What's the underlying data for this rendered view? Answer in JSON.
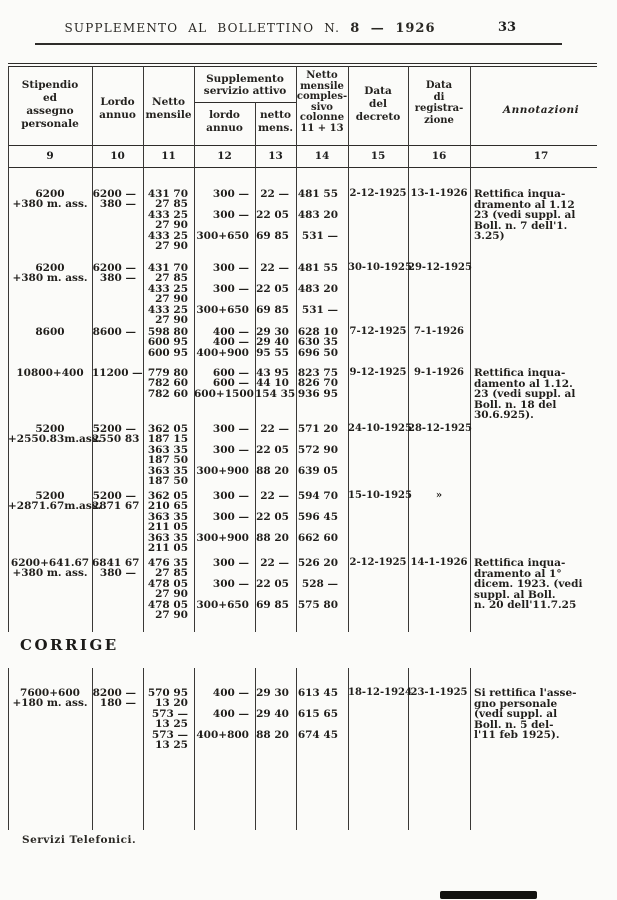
{
  "colors": {
    "paper": "#fbfbf9",
    "ink": "#1e1e1e",
    "rule": "#2e2c2a"
  },
  "page": {
    "header": {
      "title_prefix": "SUPPLEMENTO AL BOLLETTINO N.",
      "title_number": "8 — 1926",
      "page_number": "33"
    },
    "corrige_heading": "CORRIGE",
    "footer_note": "Servizi Telefonici."
  },
  "table": {
    "header": {
      "col9": {
        "num": "9",
        "lines": [
          "Stipendio",
          "ed",
          "assegno",
          "personale"
        ]
      },
      "col10": {
        "num": "10",
        "lines": [
          "Lordo",
          "annuo"
        ]
      },
      "col11": {
        "num": "11",
        "lines": [
          "Netto",
          "mensile"
        ]
      },
      "suppl_group": {
        "lines": [
          "Supplemento",
          "servizio attivo"
        ]
      },
      "col12": {
        "num": "12",
        "lines": [
          "lordo",
          "annuo"
        ]
      },
      "col13": {
        "num": "13",
        "lines": [
          "netto",
          "mens."
        ]
      },
      "col14": {
        "num": "14",
        "lines": [
          "Netto",
          "mensile",
          "comples-",
          "sivo",
          "colonne",
          "11 + 13"
        ]
      },
      "col15": {
        "num": "15",
        "lines": [
          "Data",
          "del",
          "decreto"
        ]
      },
      "col16": {
        "num": "16",
        "lines": [
          "Data",
          "di",
          "registra-",
          "zione"
        ]
      },
      "col17": {
        "num": "17",
        "lines": [
          "Annotazioni"
        ]
      }
    },
    "rows": [
      {
        "stipendio": [
          "6200",
          "+380 m. ass."
        ],
        "lordo": [
          "6200 —",
          "380 —"
        ],
        "netto": [
          "431 70",
          "27 85",
          "433 25",
          "27 90",
          "433 25",
          "27 90"
        ],
        "suppl_lordo": [
          "300 —",
          "",
          "300 —",
          "",
          "300+650"
        ],
        "suppl_netto": [
          "22 —",
          "",
          "22 05",
          "",
          "69 85"
        ],
        "compl": [
          "481 55",
          "",
          "483 20",
          "",
          "531 —"
        ],
        "decreto": "2-12-1925",
        "registrazione": "13-1-1926",
        "annotazioni": [
          "Rettifica inqua-",
          "dramento al 1.12",
          "23 (vedi suppl. al",
          "Boll. n. 7 dell'1.",
          "3.25)"
        ]
      },
      {
        "stipendio": [
          "6200",
          "+380 m. ass."
        ],
        "lordo": [
          "6200 —",
          "380 —"
        ],
        "netto": [
          "431 70",
          "27 85",
          "433 25",
          "27 90",
          "433 25",
          "27 90"
        ],
        "suppl_lordo": [
          "300 —",
          "",
          "300 —",
          "",
          "300+650"
        ],
        "suppl_netto": [
          "22 —",
          "",
          "22 05",
          "",
          "69 85"
        ],
        "compl": [
          "481 55",
          "",
          "483 20",
          "",
          "531 —"
        ],
        "decreto": "30-10-1925",
        "registrazione": "29-12-1925",
        "annotazioni": []
      },
      {
        "stipendio": [
          "8600"
        ],
        "lordo": [
          "8600 —"
        ],
        "netto": [
          "598 80",
          "600 95",
          "600 95"
        ],
        "suppl_lordo": [
          "400 —",
          "400 —",
          "400+900"
        ],
        "suppl_netto": [
          "29 30",
          "29 40",
          "95 55"
        ],
        "compl": [
          "628 10",
          "630 35",
          "696 50"
        ],
        "decreto": "7-12-1925",
        "registrazione": "7-1-1926",
        "annotazioni": []
      },
      {
        "stipendio": [
          "10800+400"
        ],
        "lordo": [
          "11200 —"
        ],
        "netto": [
          "779 80",
          "782 60",
          "782 60"
        ],
        "suppl_lordo": [
          "600 —",
          "600 —",
          "600+1500"
        ],
        "suppl_netto": [
          "43 95",
          "44 10",
          "154 35"
        ],
        "compl": [
          "823 75",
          "826 70",
          "936 95"
        ],
        "decreto": "9-12-1925",
        "registrazione": "9-1-1926",
        "annotazioni": [
          "Rettifica inqua-",
          "damento al 1.12.",
          "23 (vedi suppl. al",
          "Boll. n. 18 del",
          "30.6.925)."
        ]
      },
      {
        "stipendio": [
          "5200",
          "+2550.83m.ass."
        ],
        "lordo": [
          "5200 —",
          "2550 83"
        ],
        "netto": [
          "362 05",
          "187 15",
          "363 35",
          "187 50",
          "363 35",
          "187 50"
        ],
        "suppl_lordo": [
          "300 —",
          "",
          "300 —",
          "",
          "300+900"
        ],
        "suppl_netto": [
          "22 —",
          "",
          "22 05",
          "",
          "88 20"
        ],
        "compl": [
          "571 20",
          "",
          "572 90",
          "",
          "639 05"
        ],
        "decreto": "24-10-1925",
        "registrazione": "28-12-1925",
        "annotazioni": []
      },
      {
        "stipendio": [
          "5200",
          "+2871.67m.ass."
        ],
        "lordo": [
          "5200 —",
          "2871 67"
        ],
        "netto": [
          "362 05",
          "210 65",
          "363 35",
          "211 05",
          "363 35",
          "211 05"
        ],
        "suppl_lordo": [
          "300 —",
          "",
          "300 —",
          "",
          "300+900"
        ],
        "suppl_netto": [
          "22 —",
          "",
          "22 05",
          "",
          "88 20"
        ],
        "compl": [
          "594 70",
          "",
          "596 45",
          "",
          "662 60"
        ],
        "decreto": "15-10-1925",
        "registrazione": "»",
        "annotazioni": []
      },
      {
        "stipendio": [
          "6200+641.67",
          "+380 m. ass."
        ],
        "lordo": [
          "6841 67",
          "380 —"
        ],
        "netto": [
          "476 35",
          "27 85",
          "478 05",
          "27 90",
          "478 05",
          "27 90"
        ],
        "suppl_lordo": [
          "300 —",
          "",
          "300 —",
          "",
          "300+650"
        ],
        "suppl_netto": [
          "22 —",
          "",
          "22 05",
          "",
          "69 85"
        ],
        "compl": [
          "526 20",
          "",
          "528 —",
          "",
          "575 80"
        ],
        "decreto": "2-12-1925",
        "registrazione": "14-1-1926",
        "annotazioni": [
          "Rettifica inqua-",
          "dramento al 1°",
          "dicem. 1923. (vedi",
          "suppl. al Boll.",
          "n. 20 dell'11.7.25"
        ]
      }
    ],
    "corrige_rows": [
      {
        "stipendio": [
          "7600+600",
          "+180 m. ass."
        ],
        "lordo": [
          "8200 —",
          "180 —"
        ],
        "netto": [
          "570 95",
          "13 20",
          "573 —",
          "13 25",
          "573 —",
          "13 25"
        ],
        "suppl_lordo": [
          "400 —",
          "",
          "400 —",
          "",
          "400+800"
        ],
        "suppl_netto": [
          "29 30",
          "",
          "29 40",
          "",
          "88 20"
        ],
        "compl": [
          "613 45",
          "",
          "615 65",
          "",
          "674 45"
        ],
        "decreto": "18-12-1924",
        "registrazione": "23-1-1925",
        "annotazioni": [
          "Si rettifica l'asse-",
          "gno personale",
          "(vedi suppl. al",
          "Boll. n. 5 del-",
          "l'11 feb 1925)."
        ]
      }
    ]
  }
}
